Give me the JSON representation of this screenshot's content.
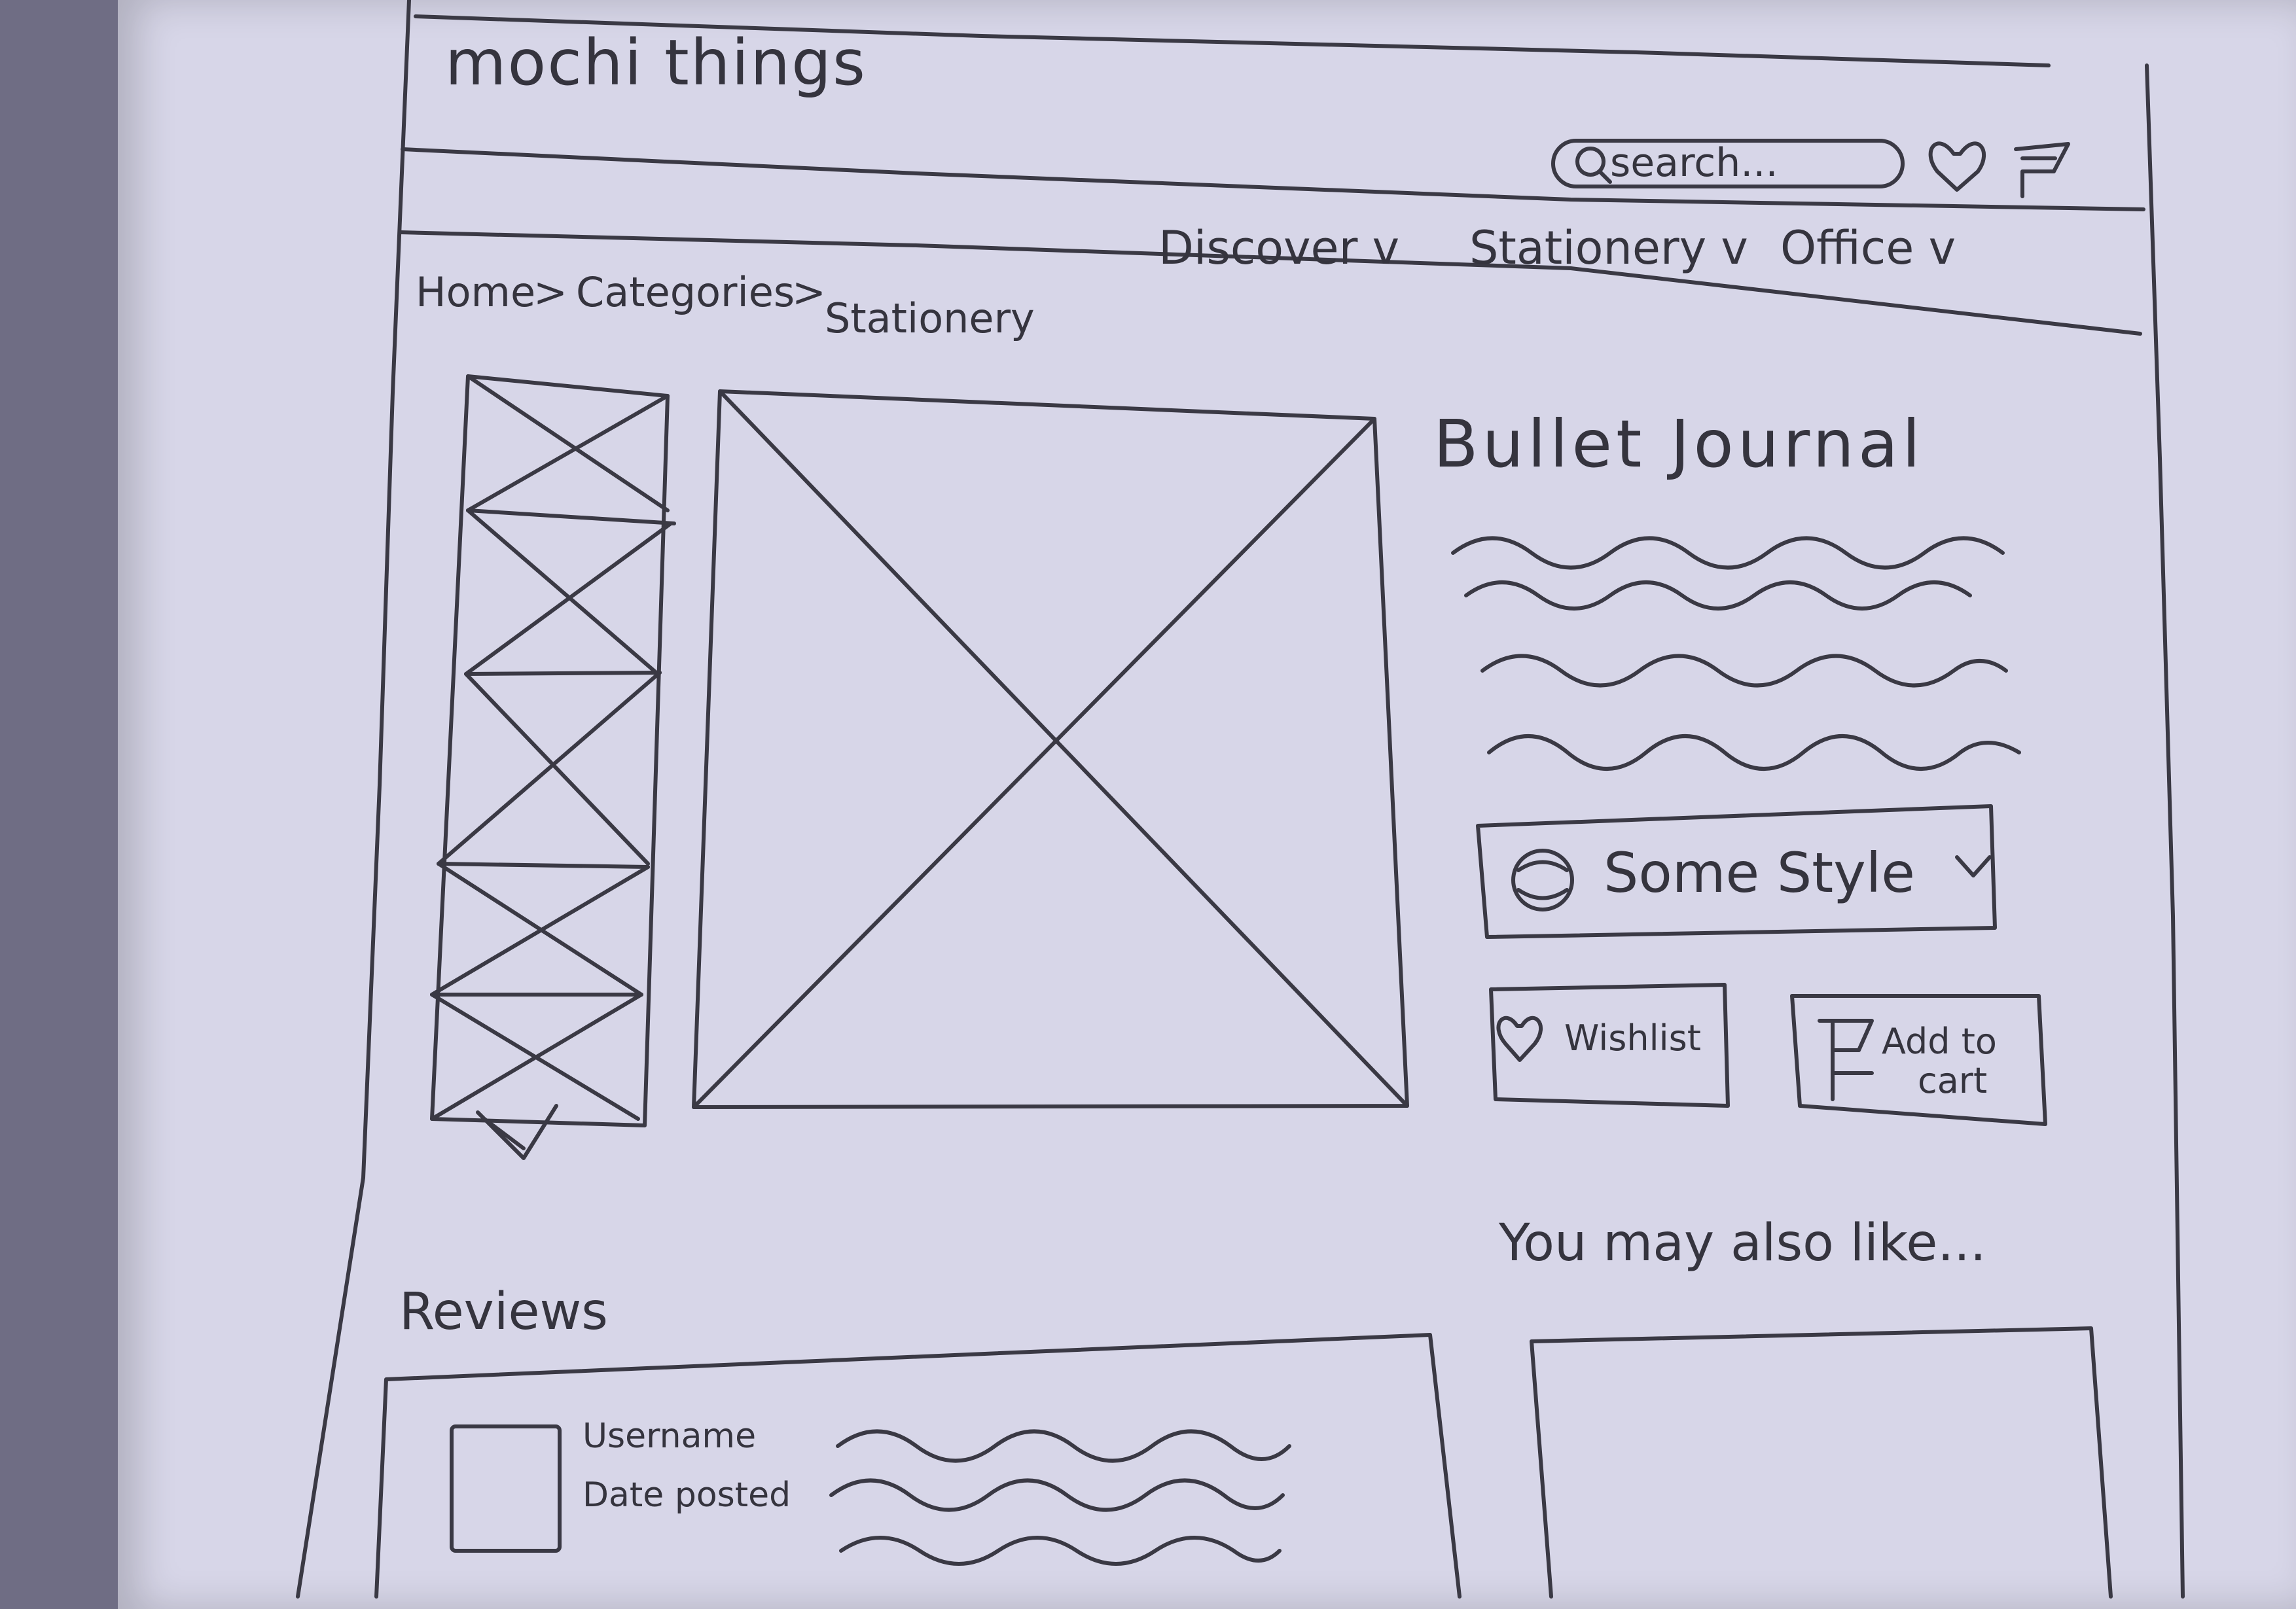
{
  "brand": {
    "name": "mochi things"
  },
  "header": {
    "search": {
      "placeholder": "search..."
    },
    "icons": [
      "heart-icon",
      "cart-icon"
    ]
  },
  "nav": {
    "items": [
      {
        "label": "Discover v"
      },
      {
        "label": "Stationery v"
      },
      {
        "label": "Office v"
      }
    ]
  },
  "breadcrumb": {
    "items": [
      "Home",
      ">",
      "Categories",
      ">",
      "Stationery"
    ]
  },
  "product": {
    "title": "Bullet Journal",
    "style_select": {
      "value": "Some Style",
      "chevron": "v",
      "icon": "style-swatch-icon"
    },
    "wishlist_label": "Wishlist",
    "add_to_cart_label_line1": "Add to",
    "add_to_cart_label_line2": "cart"
  },
  "reviews": {
    "heading": "Reviews",
    "items": [
      {
        "username": "Username",
        "date": "Date posted"
      }
    ]
  },
  "recommendations": {
    "heading": "You may also like..."
  }
}
